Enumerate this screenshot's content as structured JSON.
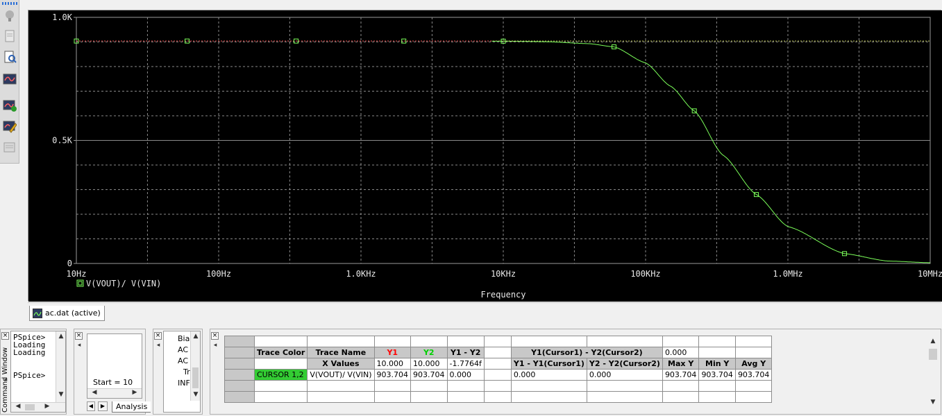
{
  "plot": {
    "y_ticks": [
      "1.0K",
      "0.5K",
      "0"
    ],
    "x_ticks": [
      "10Hz",
      "100Hz",
      "1.0KHz",
      "10KHz",
      "100KHz",
      "1.0MHz",
      "10MHz"
    ],
    "x_axis_label": "Frequency",
    "trace_legend": "V(VOUT)/ V(VIN)",
    "background_color": "#000000",
    "trace_color": "#7cff5a",
    "cursor_line_color": "#ff5a5a"
  },
  "chart_data": {
    "type": "line",
    "xlabel": "Frequency",
    "ylabel": "",
    "x_scale": "log",
    "xlim": [
      10,
      10000000
    ],
    "ylim": [
      0,
      1000
    ],
    "series": [
      {
        "name": "V(VOUT)/ V(VIN)",
        "x": [
          10,
          60,
          350,
          2000,
          10000,
          20000,
          40000,
          60000,
          100000,
          150000,
          220000,
          350000,
          600000,
          1000000,
          2500000,
          5000000,
          10000000
        ],
        "values": [
          903.7,
          903.7,
          903.7,
          903.7,
          903.2,
          901,
          893,
          880,
          815,
          720,
          620,
          440,
          280,
          150,
          40,
          10,
          3
        ]
      }
    ]
  },
  "tab": {
    "label": "ac.dat (active)"
  },
  "command_window": {
    "title": "Command Window",
    "lines": [
      "PSpice>",
      "Loading",
      "Loading",
      "",
      "PSpice>"
    ]
  },
  "sim_pane": {
    "start_label": "Start = 10",
    "tab_label": "Analysis"
  },
  "analysis_pane": {
    "items": [
      "Bia",
      "AC",
      "AC",
      "Tr",
      "INF"
    ]
  },
  "cursor_table": {
    "headers": [
      "Trace Color",
      "Trace Name",
      "Y1",
      "Y2",
      "Y1 - Y2",
      "",
      "Y1(Cursor1) - Y2(Cursor2)",
      "",
      "0.000"
    ],
    "row2": [
      "",
      "X Values",
      "10.000",
      "10.000",
      "-1.7764f",
      "",
      "Y1 - Y1(Cursor1)",
      "Y2 - Y2(Cursor2)",
      "Max Y",
      "Min Y",
      "Avg Y"
    ],
    "row3": [
      "CURSOR 1,2",
      "V(VOUT)/ V(VIN)",
      "903.704",
      "903.704",
      "0.000",
      "",
      "0.000",
      "0.000",
      "903.704",
      "903.704",
      "903.704"
    ],
    "y1_color": "#ff0000",
    "y2_color": "#00d000",
    "cursor_cell_color": "#33cc33"
  }
}
